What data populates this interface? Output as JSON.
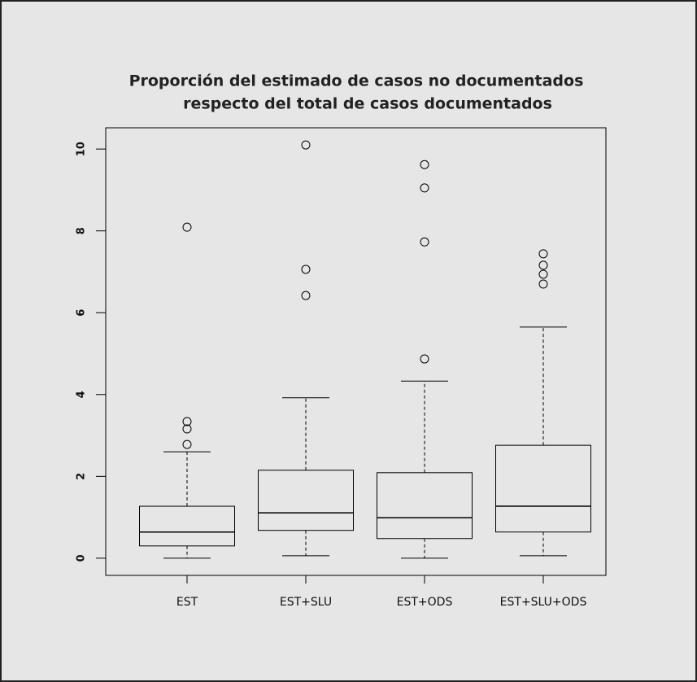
{
  "chart_data": {
    "type": "box",
    "title": [
      "Proporción del estimado de casos no documentados",
      "respecto del total de casos documentados"
    ],
    "categories": [
      "EST",
      "EST+SLU",
      "EST+ODS",
      "EST+SLU+ODS"
    ],
    "boxes": [
      {
        "whislo": 0.0,
        "q1": 0.3,
        "med": 0.64,
        "q3": 1.27,
        "whishi": 2.6,
        "fliers": [
          2.78,
          3.16,
          3.34,
          8.09
        ]
      },
      {
        "whislo": 0.06,
        "q1": 0.68,
        "med": 1.11,
        "q3": 2.15,
        "whishi": 3.92,
        "fliers": [
          6.42,
          7.06,
          10.1
        ]
      },
      {
        "whislo": 0.0,
        "q1": 0.48,
        "med": 0.99,
        "q3": 2.09,
        "whishi": 4.33,
        "fliers": [
          4.87,
          7.73,
          9.05,
          9.62
        ]
      },
      {
        "whislo": 0.06,
        "q1": 0.64,
        "med": 1.27,
        "q3": 2.76,
        "whishi": 5.65,
        "fliers": [
          6.7,
          6.94,
          7.16,
          7.44
        ]
      }
    ],
    "ylim": [
      -0.42,
      10.52
    ],
    "yticks": [
      0,
      2,
      4,
      6,
      8,
      10
    ],
    "color": "#000000"
  }
}
